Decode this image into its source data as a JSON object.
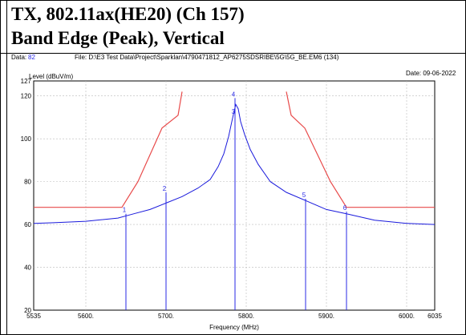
{
  "title_line1": "TX, 802.11ax(HE20) (Ch 157)",
  "title_line2": "Band Edge (Peak), Vertical",
  "header": {
    "data_label": "Data:",
    "data_value": "82",
    "file_text": "File: D:\\E3 Test Data\\Project\\Sparklan\\4790471812_AP6275SDSRIBE\\5G\\5G_BE.EM6  (134)",
    "date_text": "Date: 09-06-2022"
  },
  "chart_data": {
    "type": "line",
    "ylabel": "Level (dBuV/m)",
    "xlabel": "Frequency (MHz)",
    "xlim": [
      5535,
      6035
    ],
    "ylim": [
      20,
      127
    ],
    "x_ticks": [
      5535,
      5600,
      5700,
      5800,
      5900,
      6000,
      6035
    ],
    "x_tick_labels": [
      "5535",
      "5600.",
      "5700.",
      "5800.",
      "5900.",
      "6000.",
      "6035"
    ],
    "y_ticks": [
      20,
      40,
      60,
      80,
      100,
      120,
      127
    ],
    "colors": {
      "trace": "#1a1adc",
      "limit": "#e84a4a",
      "markers": "#2a2ae6",
      "grid": "#bbbbbb"
    },
    "series": [
      {
        "name": "",
        "points": [
          [
            5535,
            60.5
          ],
          [
            5560,
            60.8
          ],
          [
            5600,
            61.5
          ],
          [
            5640,
            63
          ],
          [
            5660,
            65
          ],
          [
            5680,
            67
          ],
          [
            5700,
            70
          ],
          [
            5720,
            73
          ],
          [
            5740,
            77
          ],
          [
            5755,
            81
          ],
          [
            5765,
            87
          ],
          [
            5772,
            93
          ],
          [
            5778,
            101
          ],
          [
            5782,
            108
          ],
          [
            5785,
            113
          ],
          [
            5787,
            116
          ],
          [
            5790,
            114
          ],
          [
            5793,
            108
          ],
          [
            5798,
            102
          ],
          [
            5805,
            95
          ],
          [
            5815,
            88
          ],
          [
            5830,
            80
          ],
          [
            5850,
            75
          ],
          [
            5875,
            71
          ],
          [
            5900,
            67
          ],
          [
            5925,
            65
          ],
          [
            5960,
            62
          ],
          [
            6000,
            60.5
          ],
          [
            6035,
            60
          ]
        ]
      },
      {
        "name": "",
        "points": [
          [
            5535,
            68
          ],
          [
            5645,
            68
          ],
          [
            5665,
            80
          ],
          [
            5695,
            105
          ],
          [
            5715,
            111
          ],
          [
            5720,
            122
          ]
        ]
      },
      {
        "name": "",
        "points": [
          [
            5850,
            122
          ],
          [
            5856,
            111
          ],
          [
            5873,
            105
          ],
          [
            5905,
            80
          ],
          [
            5925,
            68
          ],
          [
            6035,
            68
          ]
        ]
      }
    ],
    "markers": [
      {
        "label": "1",
        "x": 5650,
        "y": 65
      },
      {
        "label": "2",
        "x": 5700,
        "y": 75
      },
      {
        "label": "3",
        "x": 5786,
        "y": 111
      },
      {
        "label": "4",
        "x": 5786,
        "y": 119
      },
      {
        "label": "5",
        "x": 5874,
        "y": 72
      },
      {
        "label": "6",
        "x": 5925,
        "y": 66
      }
    ]
  }
}
